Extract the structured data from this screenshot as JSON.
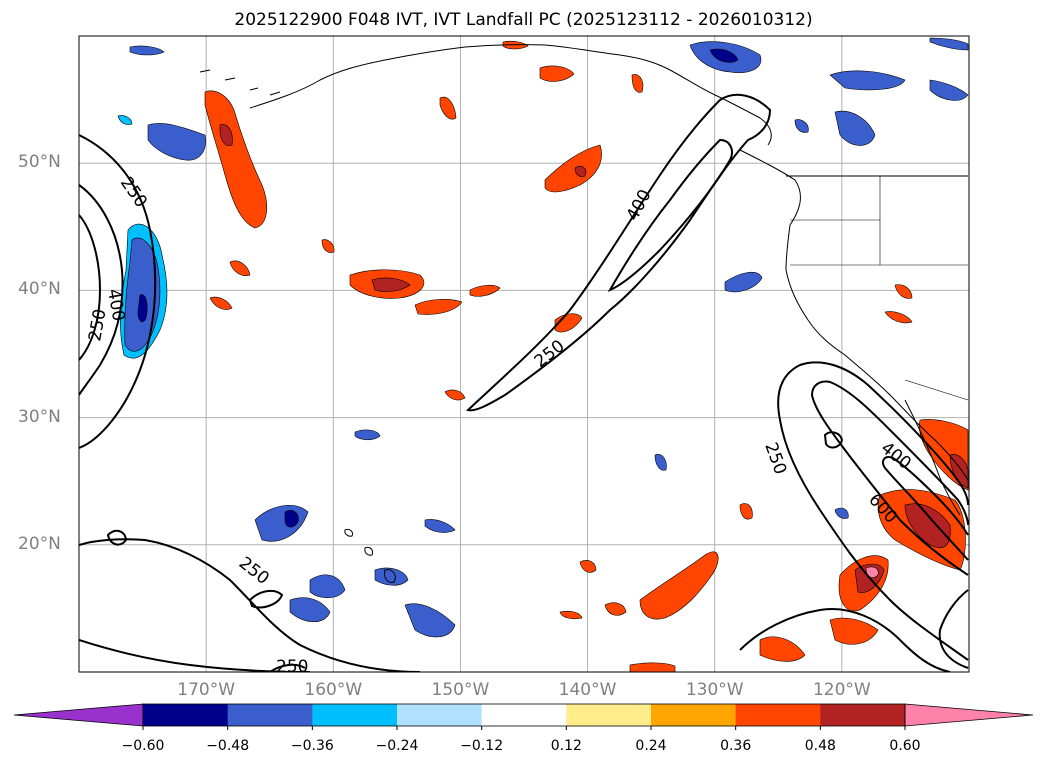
{
  "title": "2025122900 F048 IVT, IVT Landfall PC (2025123112 - 2026010312)",
  "chart_data": {
    "type": "map-contour",
    "title": "2025122900 F048 IVT, IVT Landfall PC (2025123112 - 2026010312)",
    "lat_range": [
      10,
      60
    ],
    "lon_range": [
      -180,
      -110
    ],
    "lat_ticks": [
      {
        "value": 20,
        "label": "20°N"
      },
      {
        "value": 30,
        "label": "30°N"
      },
      {
        "value": 40,
        "label": "40°N"
      },
      {
        "value": 50,
        "label": "50°N"
      }
    ],
    "lon_ticks": [
      {
        "value": -170,
        "label": "170°W"
      },
      {
        "value": -160,
        "label": "160°W"
      },
      {
        "value": -150,
        "label": "150°W"
      },
      {
        "value": -140,
        "label": "140°W"
      },
      {
        "value": -130,
        "label": "130°W"
      },
      {
        "value": -120,
        "label": "120°W"
      }
    ],
    "ivt_contour_levels": [
      "250",
      "400",
      "600"
    ],
    "contour_labels": [
      "250",
      "400",
      "250",
      "250",
      "250",
      "250",
      "400",
      "250",
      "400",
      "600"
    ],
    "colorbar": {
      "levels": [
        -0.6,
        -0.48,
        -0.36,
        -0.24,
        -0.12,
        0.12,
        0.24,
        0.36,
        0.48,
        0.6
      ],
      "tick_labels": [
        "−0.60",
        "−0.48",
        "−0.36",
        "−0.24",
        "−0.12",
        "0.12",
        "0.24",
        "0.36",
        "0.48",
        "0.60"
      ],
      "colors": [
        "#9932cc",
        "#00008b",
        "#3a5fcd",
        "#00bfff",
        "#b0e2ff",
        "#ffffff",
        "#ffec8b",
        "#ffa500",
        "#ff4500",
        "#b22222",
        "#ff82ab"
      ]
    }
  }
}
